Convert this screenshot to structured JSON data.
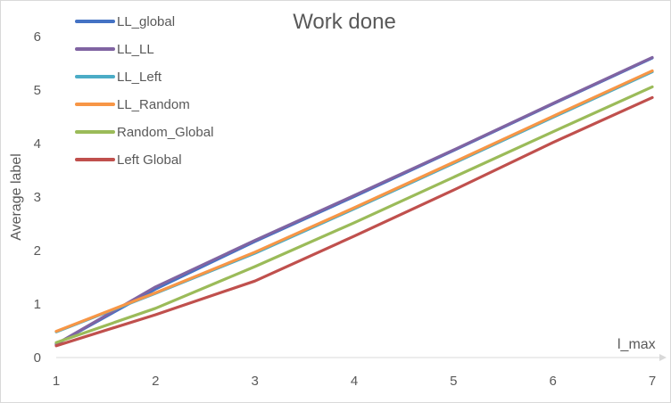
{
  "chart_data": {
    "type": "line",
    "title": "Work done",
    "xlabel": "l_max",
    "ylabel": "Average label",
    "x": [
      1,
      2,
      3,
      4,
      5,
      6,
      7
    ],
    "xlim": [
      1,
      7
    ],
    "ylim": [
      0,
      6
    ],
    "yticks": [
      0,
      1,
      2,
      3,
      4,
      5,
      6
    ],
    "grid": false,
    "legend_position": "top-left",
    "series": [
      {
        "name": "LL_global",
        "color": "#4472c4",
        "values": [
          0.25,
          1.28,
          2.17,
          3.01,
          3.87,
          4.74,
          5.6
        ]
      },
      {
        "name": "LL_LL",
        "color": "#8064a2",
        "values": [
          0.25,
          1.32,
          2.19,
          3.03,
          3.88,
          4.75,
          5.61
        ]
      },
      {
        "name": "LL_Left",
        "color": "#4bacc6",
        "values": [
          0.48,
          1.2,
          1.95,
          2.78,
          3.63,
          4.49,
          5.34
        ]
      },
      {
        "name": "LL_Random",
        "color": "#f79646",
        "values": [
          0.49,
          1.21,
          1.97,
          2.8,
          3.65,
          4.51,
          5.36
        ]
      },
      {
        "name": "Random_Global",
        "color": "#9bbb59",
        "values": [
          0.28,
          0.92,
          1.7,
          2.52,
          3.37,
          4.22,
          5.06
        ]
      },
      {
        "name": "Left Global",
        "color": "#c0504d",
        "values": [
          0.22,
          0.8,
          1.43,
          2.27,
          3.13,
          4.02,
          4.86
        ]
      }
    ]
  }
}
